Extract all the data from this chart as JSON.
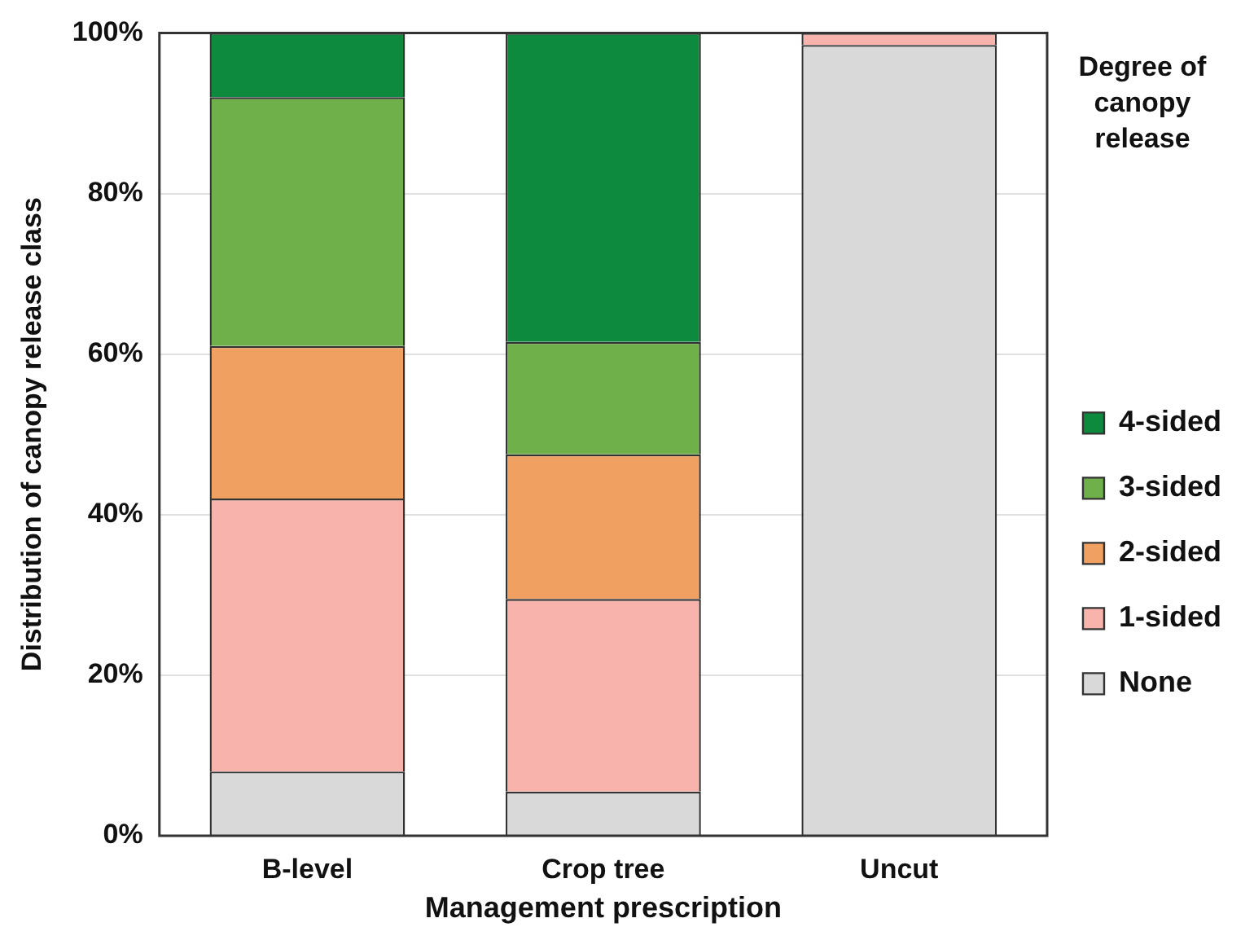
{
  "chart_data": {
    "type": "bar",
    "stacked": true,
    "xlabel": "Management prescription",
    "ylabel": "Distribution of canopy release class",
    "legend_title": "Degree of canopy release",
    "legend": "right",
    "categories": [
      "B-level",
      "Crop tree",
      "Uncut"
    ],
    "series": [
      {
        "name": "None",
        "color": "#d9d9d9",
        "values": [
          8,
          5.5,
          98.5
        ]
      },
      {
        "name": "1-sided",
        "color": "#f8b4ac",
        "values": [
          34,
          24,
          1.5
        ]
      },
      {
        "name": "2-sided",
        "color": "#f0a060",
        "values": [
          19,
          18,
          0
        ]
      },
      {
        "name": "3-sided",
        "color": "#6fb04a",
        "values": [
          31,
          14,
          0
        ]
      },
      {
        "name": "4-sided",
        "color": "#0e8a3e",
        "values": [
          8,
          38.5,
          0
        ]
      }
    ],
    "ylim": [
      0,
      100
    ],
    "yticks": [
      {
        "value": 0,
        "label": "0%"
      },
      {
        "value": 20,
        "label": "20%"
      },
      {
        "value": 40,
        "label": "40%"
      },
      {
        "value": 60,
        "label": "60%"
      },
      {
        "value": 80,
        "label": "80%"
      },
      {
        "value": 100,
        "label": "100%"
      }
    ],
    "grid": "y"
  }
}
